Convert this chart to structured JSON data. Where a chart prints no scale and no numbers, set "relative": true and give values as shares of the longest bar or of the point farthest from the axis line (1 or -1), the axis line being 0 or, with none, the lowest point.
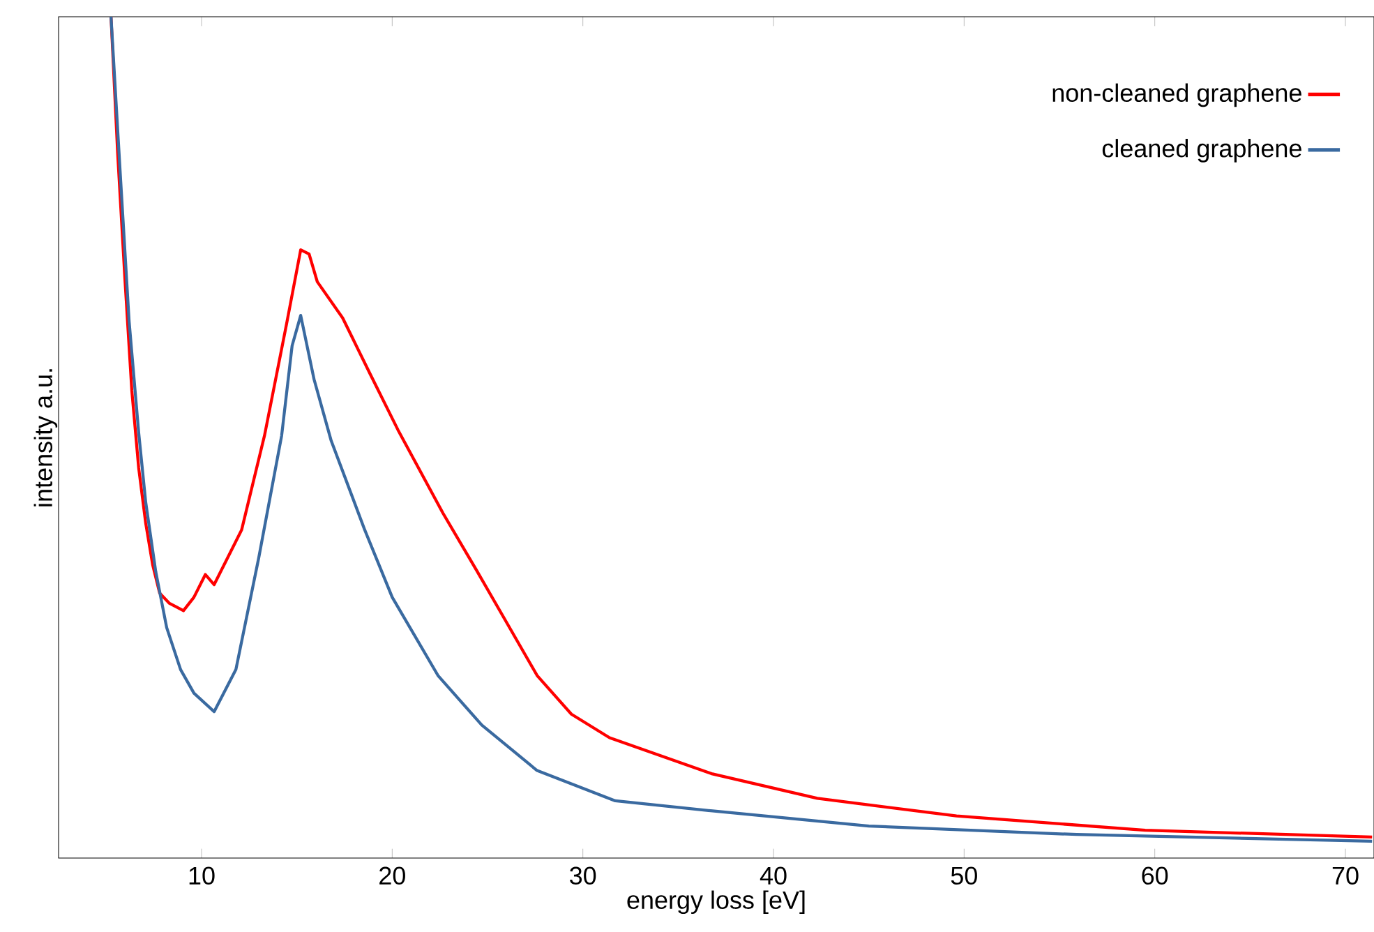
{
  "chart_data": {
    "type": "line",
    "relative": true,
    "xlabel": "energy loss [eV]",
    "ylabel": "intensity a.u.",
    "xlim": [
      2.5,
      71.5
    ],
    "xticks": [
      10,
      20,
      30,
      40,
      50,
      60,
      70
    ],
    "legend": "top right",
    "grid": false,
    "series": [
      {
        "name": "non-cleaned graphene",
        "color": "#ff0000",
        "x": [
          5.25,
          5.6,
          5.98,
          6.34,
          6.7,
          7.07,
          7.44,
          7.8,
          8.3,
          9.05,
          9.6,
          10.2,
          10.66,
          12.1,
          13.3,
          14.46,
          15.2,
          15.64,
          16.07,
          17.4,
          18.85,
          20.3,
          22.66,
          24.4,
          25.9,
          27.6,
          29.4,
          31.4,
          36.8,
          42.3,
          49.6,
          59.5,
          71.4
        ],
        "values": [
          1.0,
          0.837,
          0.688,
          0.556,
          0.464,
          0.398,
          0.348,
          0.315,
          0.303,
          0.294,
          0.31,
          0.337,
          0.325,
          0.39,
          0.502,
          0.635,
          0.723,
          0.718,
          0.685,
          0.642,
          0.575,
          0.509,
          0.41,
          0.343,
          0.284,
          0.217,
          0.171,
          0.143,
          0.1,
          0.071,
          0.05,
          0.033,
          0.025
        ]
      },
      {
        "name": "cleaned graphene",
        "color": "#3a6aa0",
        "x": [
          5.25,
          5.76,
          6.2,
          6.7,
          7.07,
          7.6,
          8.17,
          8.9,
          9.6,
          10.66,
          11.8,
          13.0,
          14.2,
          14.75,
          15.2,
          15.9,
          16.8,
          18.56,
          20.0,
          22.4,
          24.7,
          27.6,
          31.7,
          36.8,
          45.0,
          55.9,
          71.4
        ],
        "values": [
          1.0,
          0.804,
          0.638,
          0.506,
          0.423,
          0.34,
          0.274,
          0.224,
          0.196,
          0.174,
          0.224,
          0.357,
          0.502,
          0.609,
          0.645,
          0.569,
          0.496,
          0.39,
          0.31,
          0.217,
          0.158,
          0.104,
          0.068,
          0.056,
          0.038,
          0.028,
          0.02
        ]
      }
    ]
  }
}
